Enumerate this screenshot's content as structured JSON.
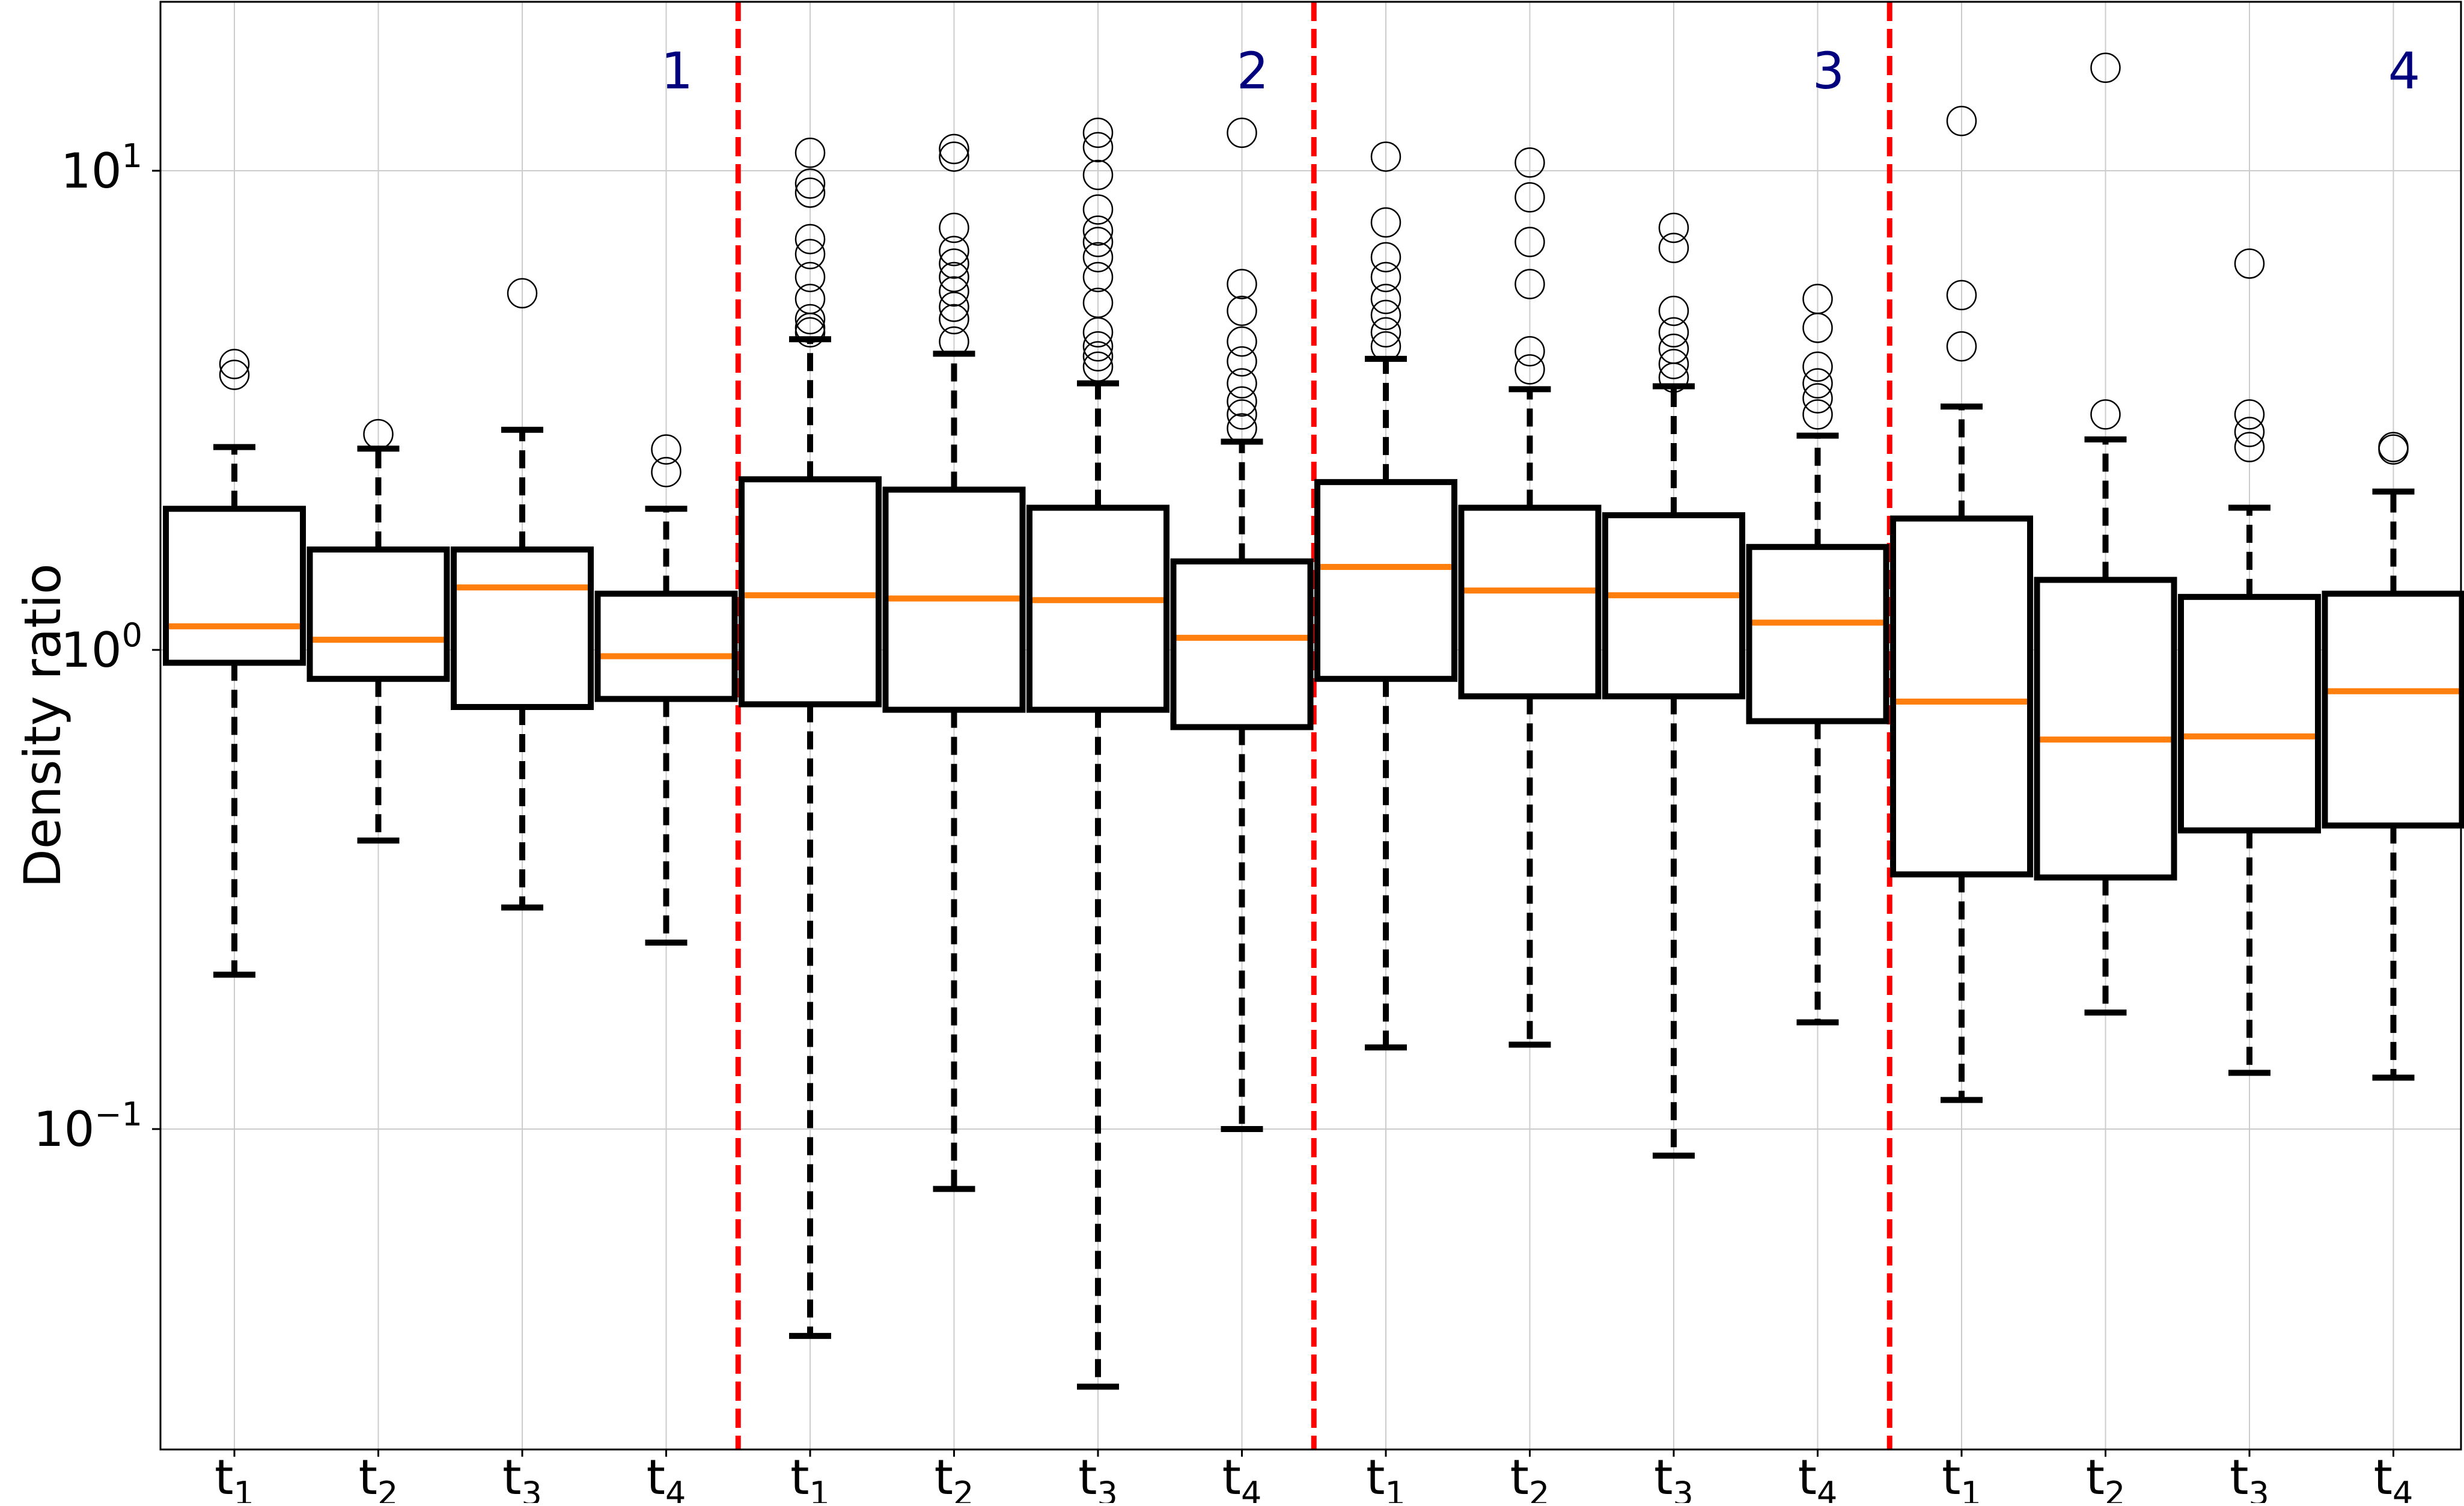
{
  "chart_data": {
    "type": "boxplot",
    "ylabel": "Density ratio",
    "yscale": "log",
    "ylim": [
      0.02,
      22
    ],
    "yticks": [
      {
        "value": 0.1,
        "base": "10",
        "exp": "−1"
      },
      {
        "value": 1,
        "base": "10",
        "exp": "0"
      },
      {
        "value": 10,
        "base": "10",
        "exp": "1"
      }
    ],
    "xtick_labels": [
      "t1",
      "t2",
      "t3",
      "t4",
      "t1",
      "t2",
      "t3",
      "t4",
      "t1",
      "t2",
      "t3",
      "t4",
      "t1",
      "t2",
      "t3",
      "t4"
    ],
    "groups": [
      "1",
      "2",
      "3",
      "4"
    ],
    "dividers_after_box": [
      4,
      8,
      12
    ],
    "colors": {
      "box": "#000000",
      "median": "#ff7f0e",
      "divider": "#ff0000",
      "group_label": "#00007f",
      "grid": "#cccccc",
      "flier": "#000000"
    },
    "boxes": [
      {
        "group": "1",
        "label": "t1",
        "whislo": 0.21,
        "q1": 0.94,
        "med": 1.12,
        "q3": 1.97,
        "whishi": 2.65,
        "fliers": [
          3.75,
          3.95
        ]
      },
      {
        "group": "1",
        "label": "t2",
        "whislo": 0.4,
        "q1": 0.87,
        "med": 1.05,
        "q3": 1.62,
        "whishi": 2.63,
        "fliers": [
          2.82
        ]
      },
      {
        "group": "1",
        "label": "t3",
        "whislo": 0.29,
        "q1": 0.76,
        "med": 1.35,
        "q3": 1.62,
        "whishi": 2.88,
        "fliers": [
          5.55
        ]
      },
      {
        "group": "1",
        "label": "t4",
        "whislo": 0.245,
        "q1": 0.79,
        "med": 0.97,
        "q3": 1.31,
        "whishi": 1.97,
        "fliers": [
          2.35,
          2.62
        ]
      },
      {
        "group": "2",
        "label": "t1",
        "whislo": 0.037,
        "q1": 0.77,
        "med": 1.3,
        "q3": 2.27,
        "whishi": 4.45,
        "fliers": [
          4.6,
          4.7,
          4.9,
          5.4,
          6.0,
          6.7,
          7.2,
          9.0,
          9.4,
          10.9
        ]
      },
      {
        "group": "2",
        "label": "t2",
        "whislo": 0.075,
        "q1": 0.75,
        "med": 1.28,
        "q3": 2.16,
        "whishi": 4.15,
        "fliers": [
          4.4,
          4.9,
          5.2,
          5.6,
          6.0,
          6.4,
          6.8,
          7.6,
          10.7,
          11.1
        ]
      },
      {
        "group": "2",
        "label": "t3",
        "whislo": 0.029,
        "q1": 0.75,
        "med": 1.27,
        "q3": 1.98,
        "whishi": 3.6,
        "fliers": [
          3.9,
          4.1,
          4.3,
          4.6,
          5.3,
          6.0,
          6.6,
          7.1,
          7.5,
          8.3,
          9.8,
          11.2,
          12.0
        ]
      },
      {
        "group": "2",
        "label": "t4",
        "whislo": 0.1,
        "q1": 0.69,
        "med": 1.06,
        "q3": 1.53,
        "whishi": 2.72,
        "fliers": [
          2.9,
          3.1,
          3.3,
          3.6,
          4.0,
          4.4,
          5.1,
          5.8,
          12.0
        ]
      },
      {
        "group": "3",
        "label": "t1",
        "whislo": 0.148,
        "q1": 0.87,
        "med": 1.49,
        "q3": 2.24,
        "whishi": 4.05,
        "fliers": [
          4.3,
          4.6,
          5.0,
          5.4,
          6.0,
          6.6,
          7.8,
          10.7
        ]
      },
      {
        "group": "3",
        "label": "t2",
        "whislo": 0.15,
        "q1": 0.8,
        "med": 1.33,
        "q3": 1.98,
        "whishi": 3.5,
        "fliers": [
          3.85,
          4.2,
          5.8,
          7.1,
          8.8,
          10.4
        ]
      },
      {
        "group": "3",
        "label": "t3",
        "whislo": 0.088,
        "q1": 0.8,
        "med": 1.3,
        "q3": 1.91,
        "whishi": 3.55,
        "fliers": [
          3.7,
          3.95,
          4.25,
          4.6,
          5.1,
          6.9,
          7.6
        ]
      },
      {
        "group": "3",
        "label": "t4",
        "whislo": 0.167,
        "q1": 0.71,
        "med": 1.14,
        "q3": 1.64,
        "whishi": 2.8,
        "fliers": [
          3.1,
          3.35,
          3.6,
          3.9,
          4.7,
          5.4
        ]
      },
      {
        "group": "4",
        "label": "t1",
        "whislo": 0.115,
        "q1": 0.34,
        "med": 0.78,
        "q3": 1.88,
        "whishi": 3.22,
        "fliers": [
          4.3,
          5.5,
          12.7
        ]
      },
      {
        "group": "4",
        "label": "t2",
        "whislo": 0.175,
        "q1": 0.335,
        "med": 0.65,
        "q3": 1.4,
        "whishi": 2.75,
        "fliers": [
          3.1,
          16.4
        ]
      },
      {
        "group": "4",
        "label": "t3",
        "whislo": 0.131,
        "q1": 0.42,
        "med": 0.66,
        "q3": 1.29,
        "whishi": 1.98,
        "fliers": [
          2.65,
          2.85,
          3.1,
          6.4
        ]
      },
      {
        "group": "4",
        "label": "t4",
        "whislo": 0.128,
        "q1": 0.43,
        "med": 0.82,
        "q3": 1.31,
        "whishi": 2.14,
        "fliers": [
          2.62,
          2.65
        ]
      }
    ]
  }
}
